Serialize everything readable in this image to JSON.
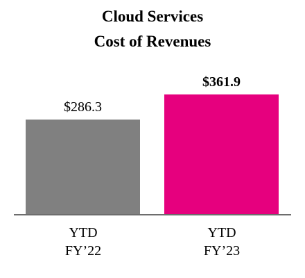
{
  "chart_data": {
    "type": "bar",
    "title": "Cloud Services",
    "subtitle": "Cost of Revenues",
    "categories": [
      {
        "line1": "YTD",
        "line2": "FY’22"
      },
      {
        "line1": "YTD",
        "line2": "FY’23"
      }
    ],
    "values": [
      286.3,
      361.9
    ],
    "value_labels": [
      "$286.3",
      "$361.9"
    ],
    "value_label_bold": [
      false,
      true
    ],
    "colors": [
      "#808080",
      "#E6007E"
    ],
    "axis_color": "#6d6d6d",
    "ylim": [
      0,
      400
    ],
    "grid": false,
    "legend": "none"
  }
}
